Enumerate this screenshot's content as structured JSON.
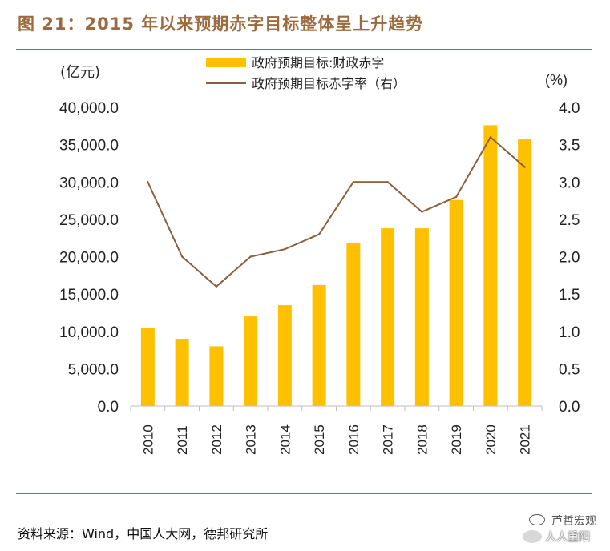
{
  "header": {
    "title": "图 21：2015 年以来预期赤字目标整体呈上升趋势"
  },
  "footer": {
    "source": "资料来源：Wind，中国人大网，德邦研究所"
  },
  "watermark": {
    "line1": "芦哲宏观",
    "line2": "人人重阳"
  },
  "colors": {
    "bar": "#FFC000",
    "line": "#8B5E3C",
    "accent": "#9c6a3c",
    "grid": "#d9d9d9"
  },
  "chart_data": {
    "type": "bar",
    "categories": [
      "2010",
      "2011",
      "2012",
      "2013",
      "2014",
      "2015",
      "2016",
      "2017",
      "2018",
      "2019",
      "2020",
      "2021"
    ],
    "series": [
      {
        "name": "政府预期目标:财政赤字",
        "axis": "left",
        "kind": "bar",
        "values": [
          10500,
          9000,
          8000,
          12000,
          13500,
          16200,
          21800,
          23800,
          23800,
          27600,
          37600,
          35700
        ]
      },
      {
        "name": "政府预期目标赤字率（右）",
        "axis": "right",
        "kind": "line",
        "values": [
          3.0,
          2.0,
          1.6,
          2.0,
          2.1,
          2.3,
          3.0,
          3.0,
          2.6,
          2.8,
          3.6,
          3.2
        ]
      }
    ],
    "y_left": {
      "unit": "(亿元)",
      "min": 0,
      "max": 40000,
      "step": 5000,
      "ticks": [
        "0.0",
        "5,000.0",
        "10,000.0",
        "15,000.0",
        "20,000.0",
        "25,000.0",
        "30,000.0",
        "35,000.0",
        "40,000.0"
      ]
    },
    "y_right": {
      "unit": "(%)",
      "min": 0,
      "max": 4,
      "step": 0.5,
      "ticks": [
        "0.0",
        "0.5",
        "1.0",
        "1.5",
        "2.0",
        "2.5",
        "3.0",
        "3.5",
        "4.0"
      ]
    },
    "legend": {
      "placement": "top-center"
    },
    "grid": false
  }
}
